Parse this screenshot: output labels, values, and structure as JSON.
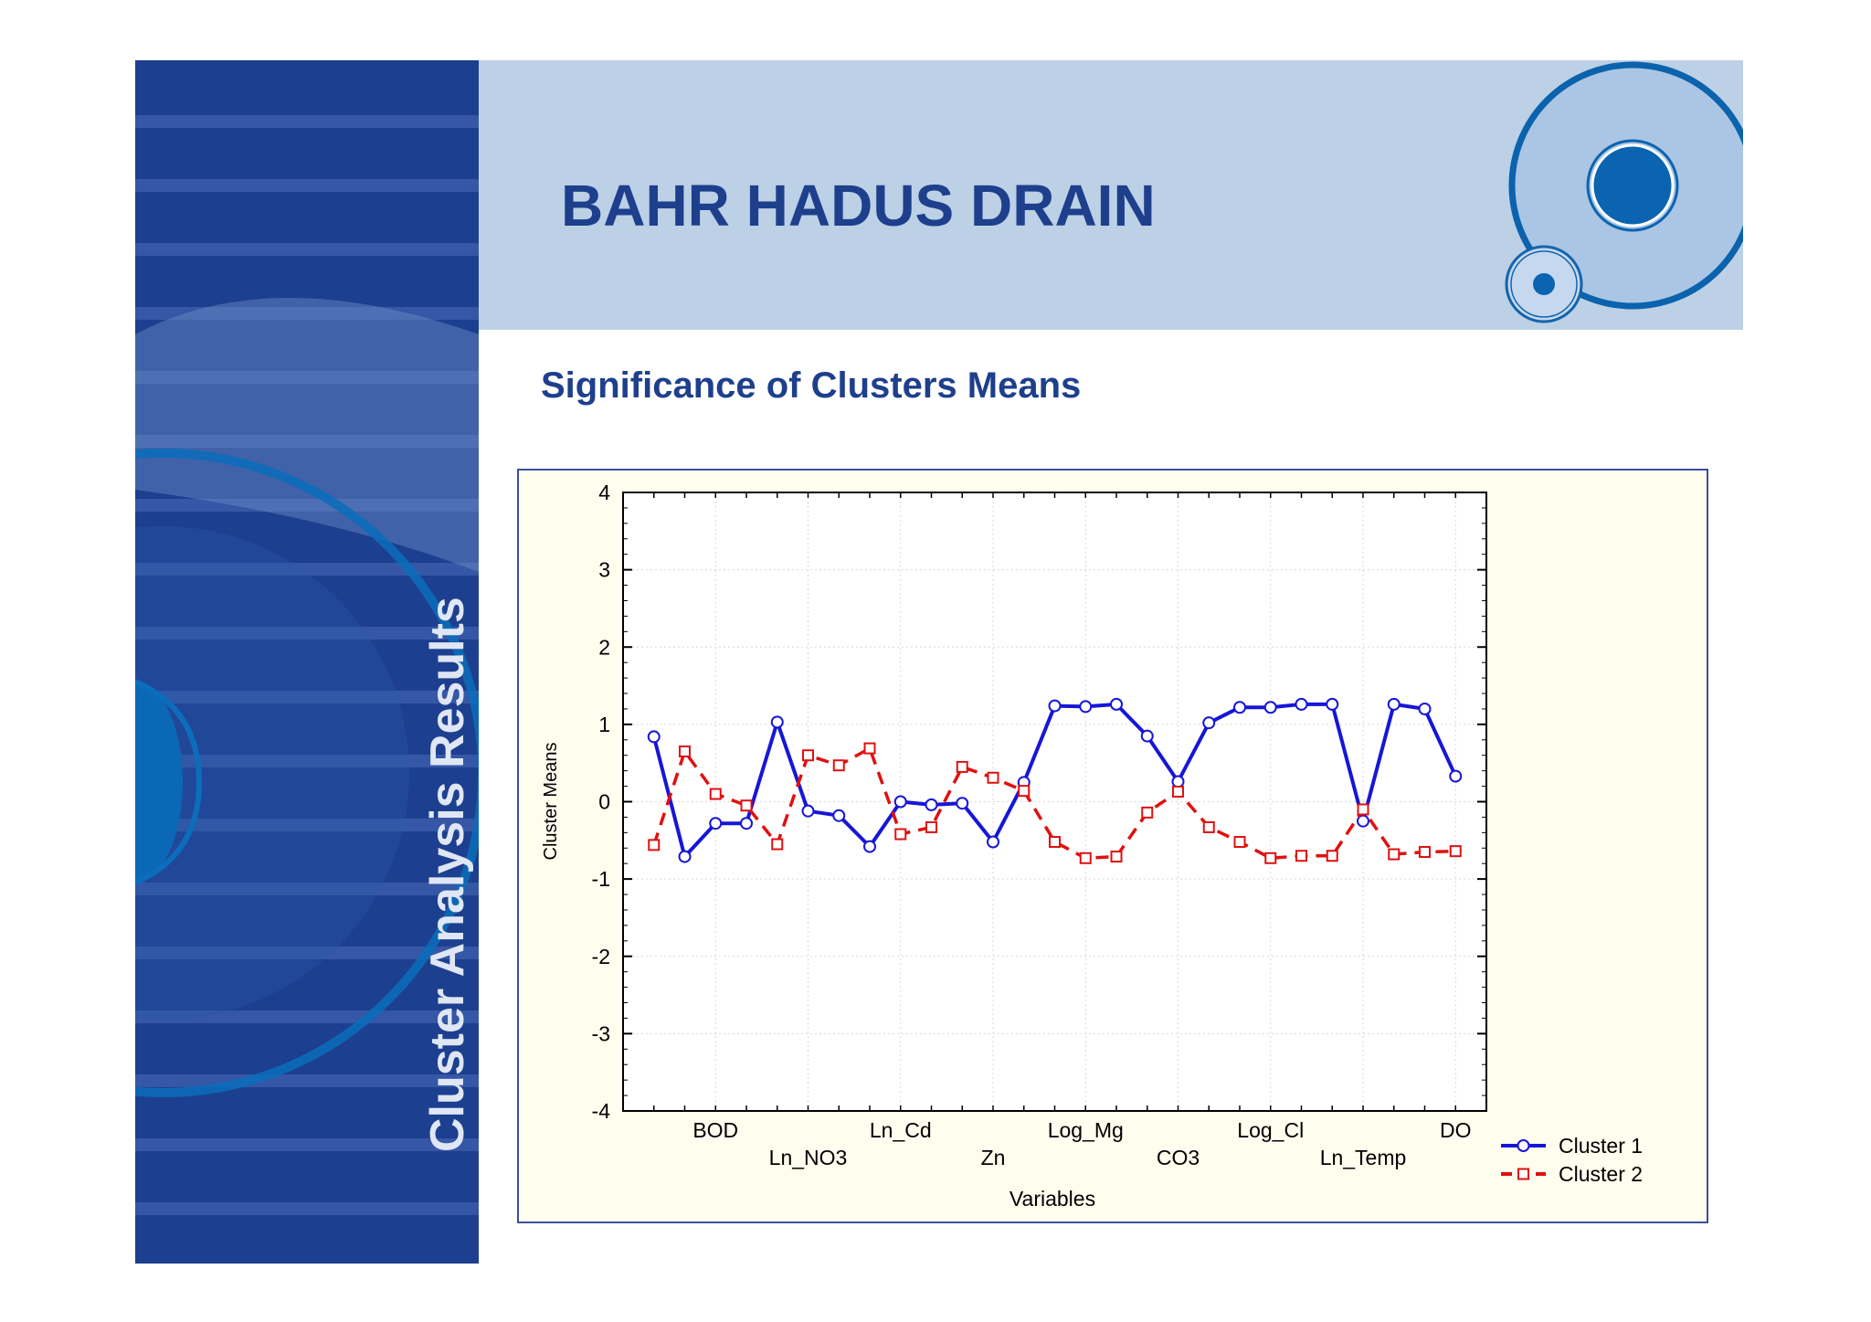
{
  "slide": {
    "title": "BAHR HADUS DRAIN",
    "subtitle": "Significance of Clusters Means",
    "side_title": "Cluster Analysis Results"
  },
  "colors": {
    "sidebar": "#1d3f8f",
    "header": "#bcd0e6",
    "title_text": "#1e3f8c",
    "chart_background": "#fffdee",
    "cluster1": "#1616d8",
    "cluster2": "#e01010"
  },
  "chart_data": {
    "type": "line",
    "xlabel": "Variables",
    "ylabel": "Cluster Means",
    "ylim": [
      -4,
      4
    ],
    "yticks": [
      4,
      3,
      2,
      1,
      0,
      -1,
      -2,
      -3,
      -4
    ],
    "grid": true,
    "legend_position": "bottom-right",
    "x_tick_labels": [
      {
        "label": "BOD",
        "index": 3,
        "row": 1
      },
      {
        "label": "Ln_NO3",
        "index": 6,
        "row": 2
      },
      {
        "label": "Ln_Cd",
        "index": 9,
        "row": 1
      },
      {
        "label": "Zn",
        "index": 12,
        "row": 2
      },
      {
        "label": "Log_Mg",
        "index": 15,
        "row": 1
      },
      {
        "label": "CO3",
        "index": 18,
        "row": 2
      },
      {
        "label": "Log_Cl",
        "index": 21,
        "row": 1
      },
      {
        "label": "Ln_Temp",
        "index": 24,
        "row": 2
      },
      {
        "label": "DO",
        "index": 27,
        "row": 1
      }
    ],
    "series": [
      {
        "name": "Cluster 1",
        "style": "solid-circle",
        "color": "#1616d8",
        "values": [
          0.84,
          -0.71,
          -0.28,
          -0.28,
          1.03,
          -0.12,
          -0.18,
          -0.58,
          0.0,
          -0.04,
          -0.02,
          -0.52,
          0.25,
          1.24,
          1.23,
          1.26,
          0.85,
          0.26,
          1.02,
          1.22,
          1.22,
          1.26,
          1.26,
          -0.25,
          1.26,
          1.2,
          0.33
        ]
      },
      {
        "name": "Cluster 2",
        "style": "dashed-square",
        "color": "#e01010",
        "values": [
          -0.56,
          0.65,
          0.1,
          -0.05,
          -0.55,
          0.6,
          0.47,
          0.69,
          -0.42,
          -0.33,
          0.45,
          0.31,
          0.14,
          -0.52,
          -0.73,
          -0.71,
          -0.14,
          0.13,
          -0.33,
          -0.52,
          -0.73,
          -0.7,
          -0.7,
          -0.1,
          -0.68,
          -0.65,
          -0.64
        ]
      }
    ]
  }
}
